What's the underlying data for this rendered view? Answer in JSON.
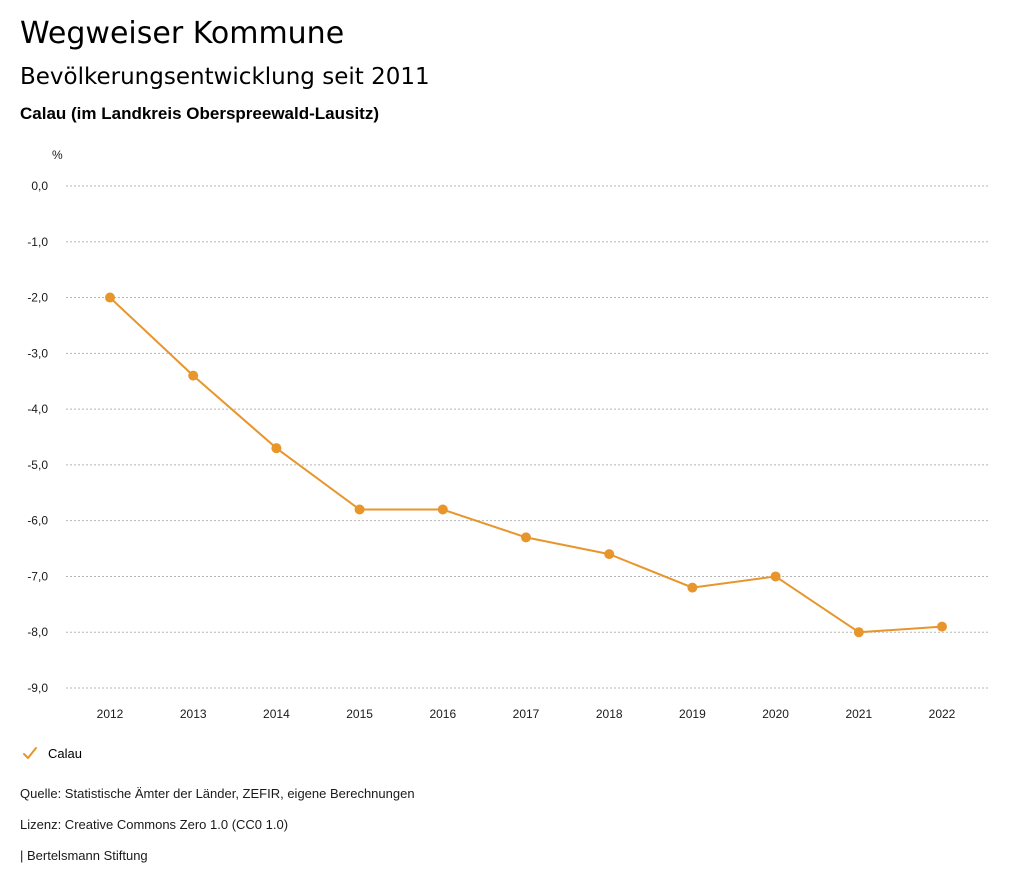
{
  "header": {
    "title": "Wegweiser Kommune",
    "subtitle": "Bevölkerungsentwicklung seit 2011",
    "region": "Calau (im Landkreis Oberspreewald-Lausitz)"
  },
  "chart_data": {
    "type": "line",
    "title": "Bevölkerungsentwicklung seit 2011",
    "ylabel": "%",
    "xlabel": "",
    "x": [
      "2012",
      "2013",
      "2014",
      "2015",
      "2016",
      "2017",
      "2018",
      "2019",
      "2020",
      "2021",
      "2022"
    ],
    "series": [
      {
        "name": "Calau",
        "color": "#E8952C",
        "values": [
          -2.0,
          -3.4,
          -4.7,
          -5.8,
          -5.8,
          -6.3,
          -6.6,
          -7.2,
          -7.0,
          -8.0,
          -7.9
        ]
      }
    ],
    "ylim": [
      -9.0,
      0.0
    ],
    "yticks": [
      0,
      -1,
      -2,
      -3,
      -4,
      -5,
      -6,
      -7,
      -8,
      -9
    ],
    "ytick_labels": [
      "0,0",
      "-1,0",
      "-2,0",
      "-3,0",
      "-4,0",
      "-5,0",
      "-6,0",
      "-7,0",
      "-8,0",
      "-9,0"
    ],
    "grid": true,
    "legend_position": "bottom-left"
  },
  "legend": {
    "label": "Calau",
    "icon": "check-icon"
  },
  "footer": {
    "source": "Quelle: Statistische Ämter der Länder, ZEFIR, eigene Berechnungen",
    "license": "Lizenz: Creative Commons Zero 1.0 (CC0 1.0)",
    "publisher": "| Bertelsmann Stiftung"
  }
}
